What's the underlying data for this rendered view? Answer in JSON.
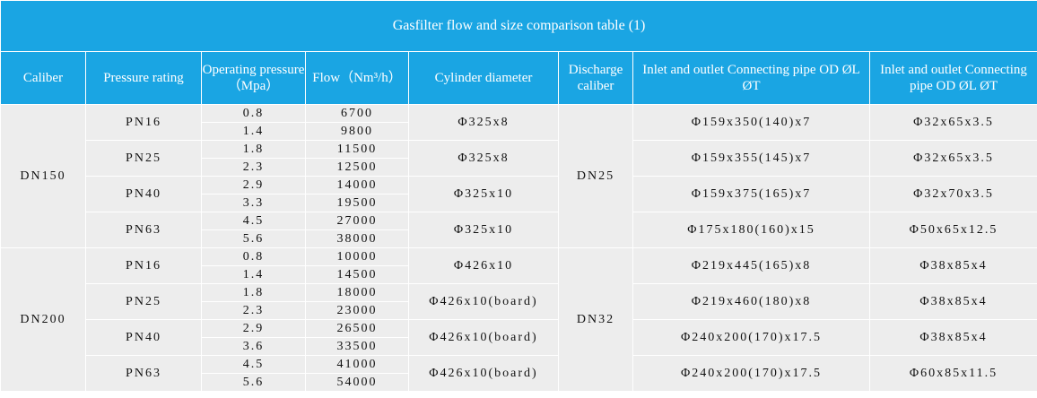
{
  "title": "Gasfilter flow and size comparison table (1)",
  "headers": [
    "Caliber",
    "Pressure rating",
    "Operating pressure（Mpa）",
    "Flow（Nm³/h）",
    "Cylinder diameter",
    "Discharge caliber",
    "Inlet and outlet Connecting pipe OD ØL ØT",
    "Inlet and outlet Connecting pipe OD ØL ØT"
  ],
  "groups": [
    {
      "caliber": "DN150",
      "discharge": "DN25",
      "ratings": [
        {
          "rating": "PN16",
          "pressures": [
            "0.8",
            "1.4"
          ],
          "flows": [
            "6700",
            "9800"
          ],
          "cylinder": "Φ325x8",
          "inlet": "Φ159x350(140)x7",
          "pipe": "Φ32x65x3.5"
        },
        {
          "rating": "PN25",
          "pressures": [
            "1.8",
            "2.3"
          ],
          "flows": [
            "11500",
            "12500"
          ],
          "cylinder": "Φ325x8",
          "inlet": "Φ159x355(145)x7",
          "pipe": "Φ32x65x3.5"
        },
        {
          "rating": "PN40",
          "pressures": [
            "2.9",
            "3.3"
          ],
          "flows": [
            "14000",
            "19500"
          ],
          "cylinder": "Φ325x10",
          "inlet": "Φ159x375(165)x7",
          "pipe": "Φ32x70x3.5"
        },
        {
          "rating": "PN63",
          "pressures": [
            "4.5",
            "5.6"
          ],
          "flows": [
            "27000",
            "38000"
          ],
          "cylinder": "Φ325x10",
          "inlet": "Φ175x180(160)x15",
          "pipe": "Φ50x65x12.5"
        }
      ]
    },
    {
      "caliber": "DN200",
      "discharge": "DN32",
      "ratings": [
        {
          "rating": "PN16",
          "pressures": [
            "0.8",
            "1.4"
          ],
          "flows": [
            "10000",
            "14500"
          ],
          "cylinder": "Φ426x10",
          "inlet": "Φ219x445(165)x8",
          "pipe": "Φ38x85x4"
        },
        {
          "rating": "PN25",
          "pressures": [
            "1.8",
            "2.3"
          ],
          "flows": [
            "18000",
            "23000"
          ],
          "cylinder": "Φ426x10(board)",
          "inlet": "Φ219x460(180)x8",
          "pipe": "Φ38x85x4"
        },
        {
          "rating": "PN40",
          "pressures": [
            "2.9",
            "3.6"
          ],
          "flows": [
            "26500",
            "33500"
          ],
          "cylinder": "Φ426x10(board)",
          "inlet": "Φ240x200(170)x17.5",
          "pipe": "Φ38x85x4"
        },
        {
          "rating": "PN63",
          "pressures": [
            "4.5",
            "5.6"
          ],
          "flows": [
            "41000",
            "54000"
          ],
          "cylinder": "Φ426x10(board)",
          "inlet": "Φ240x200(170)x17.5",
          "pipe": "Φ60x85x11.5"
        }
      ]
    }
  ]
}
